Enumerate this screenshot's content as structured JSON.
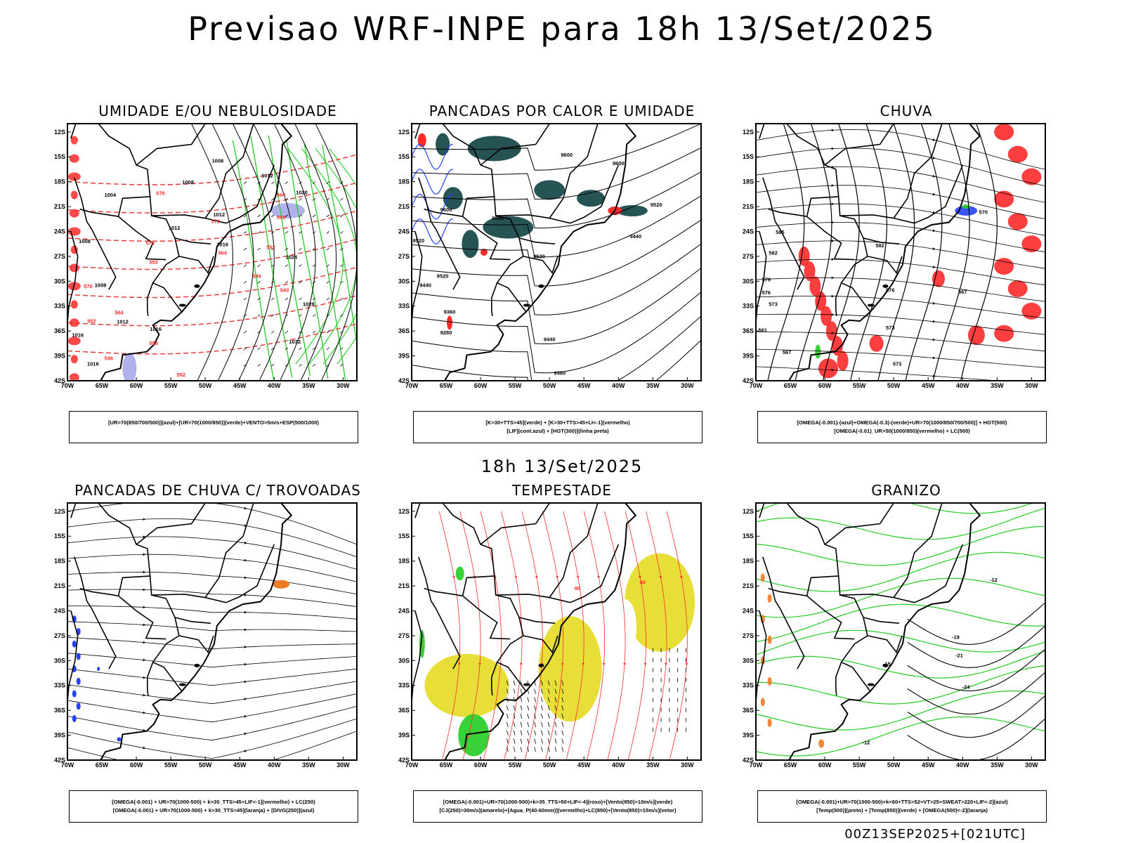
{
  "title": "Previsao WRF-INPE  para 18h 13/Set/2025",
  "subtitle": "18h 13/Set/2025",
  "footer": "00Z13SEP2025+[021UTC]",
  "colors": {
    "coast": "#000000",
    "isoline": "#000000",
    "red": "#ff2a2a",
    "red_dashed": "#e83030",
    "green": "#22cc22",
    "blue": "#2244ff",
    "lavender": "#a9a9ec",
    "teal": "#1a4a4a",
    "yellow": "#e6dc2c",
    "orange": "#ee7a22"
  },
  "axes": {
    "lon_ticks": [
      "70W",
      "65W",
      "60W",
      "55W",
      "50W",
      "45W",
      "40W",
      "35W",
      "30W"
    ],
    "lat_ticks": [
      "12S",
      "15S",
      "18S",
      "21S",
      "24S",
      "27S",
      "30S",
      "33S",
      "36S",
      "39S",
      "42S"
    ]
  },
  "chart_data": [
    {
      "type": "map",
      "title": "UMIDADE E/OU NEBULOSIDADE",
      "legend": [
        "[UR>70(850/700/500)](azul)+[UR>70(1000/850)](verde)+VENTO>5m/s+ESP(500/1000)"
      ],
      "xlim": [
        "70W",
        "28W"
      ],
      "ylim": [
        "12S",
        "42S"
      ],
      "contour_labels": [
        {
          "text": "1008",
          "lon": -48.2,
          "lat": -15.7,
          "color": "black"
        },
        {
          "text": "1008",
          "lon": -52.5,
          "lat": -18.3,
          "color": "black"
        },
        {
          "text": "1004",
          "lon": -63.8,
          "lat": -19.8,
          "color": "black"
        },
        {
          "text": "1012",
          "lon": -48.0,
          "lat": -22.2,
          "color": "black"
        },
        {
          "text": "1012",
          "lon": -54.5,
          "lat": -23.8,
          "color": "black"
        },
        {
          "text": "1012",
          "lon": -41.0,
          "lat": -17.5,
          "color": "black"
        },
        {
          "text": "1020",
          "lon": -36.0,
          "lat": -19.5,
          "color": "black"
        },
        {
          "text": "1008",
          "lon": -67.5,
          "lat": -25.4,
          "color": "black"
        },
        {
          "text": "1016",
          "lon": -47.5,
          "lat": -25.8,
          "color": "black"
        },
        {
          "text": "1024",
          "lon": -37.5,
          "lat": -27.3,
          "color": "black"
        },
        {
          "text": "1008",
          "lon": -65.2,
          "lat": -30.7,
          "color": "black"
        },
        {
          "text": "1012",
          "lon": -62.0,
          "lat": -35.1,
          "color": "black"
        },
        {
          "text": "1016",
          "lon": -57.2,
          "lat": -36.0,
          "color": "black"
        },
        {
          "text": "1028",
          "lon": -35.0,
          "lat": -33.0,
          "color": "black"
        },
        {
          "text": "1016",
          "lon": -68.5,
          "lat": -36.7,
          "color": "black"
        },
        {
          "text": "1032",
          "lon": -37.0,
          "lat": -37.5,
          "color": "black"
        },
        {
          "text": "1016",
          "lon": -66.3,
          "lat": -40.2,
          "color": "black"
        },
        {
          "text": "576",
          "lon": -56.5,
          "lat": -19.6,
          "color": "red"
        },
        {
          "text": "570",
          "lon": -48.5,
          "lat": -23.0,
          "color": "red"
        },
        {
          "text": "576",
          "lon": -58.0,
          "lat": -25.6,
          "color": "red"
        },
        {
          "text": "564",
          "lon": -47.5,
          "lat": -26.8,
          "color": "red"
        },
        {
          "text": "552",
          "lon": -57.5,
          "lat": -27.9,
          "color": "red"
        },
        {
          "text": "564",
          "lon": -39.0,
          "lat": -19.8,
          "color": "red"
        },
        {
          "text": "558",
          "lon": -39.0,
          "lat": -22.5,
          "color": "red"
        },
        {
          "text": "552",
          "lon": -40.5,
          "lat": -26.1,
          "color": "red"
        },
        {
          "text": "546",
          "lon": -42.5,
          "lat": -29.6,
          "color": "red"
        },
        {
          "text": "540",
          "lon": -38.5,
          "lat": -31.3,
          "color": "red"
        },
        {
          "text": "564",
          "lon": -62.5,
          "lat": -34.0,
          "color": "red"
        },
        {
          "text": "570",
          "lon": -67.0,
          "lat": -30.8,
          "color": "red"
        },
        {
          "text": "552",
          "lon": -66.5,
          "lat": -35.0,
          "color": "red"
        },
        {
          "text": "558",
          "lon": -57.5,
          "lat": -37.7,
          "color": "red"
        },
        {
          "text": "546",
          "lon": -64.0,
          "lat": -39.5,
          "color": "red"
        },
        {
          "text": "552",
          "lon": -53.5,
          "lat": -41.5,
          "color": "red"
        }
      ]
    },
    {
      "type": "map",
      "title": "PANCADAS POR CALOR E UMIDADE",
      "legend": [
        "[K>30+TTS>45](verde) + [K>30+TTS>45+LI<-1](vermelho)",
        "[LIF](cont.azul) + [HGT(300)](linha preta)"
      ],
      "xlim": [
        "70W",
        "28W"
      ],
      "ylim": [
        "12S",
        "42S"
      ],
      "contour_labels": [
        {
          "text": "9600",
          "lon": -47.5,
          "lat": -15.0,
          "color": "black"
        },
        {
          "text": "9600",
          "lon": -40.0,
          "lat": -16.0,
          "color": "black"
        },
        {
          "text": "9520",
          "lon": -34.5,
          "lat": -21.0,
          "color": "black"
        },
        {
          "text": "9600",
          "lon": -65.0,
          "lat": -21.6,
          "color": "black"
        },
        {
          "text": "9600",
          "lon": -57.5,
          "lat": -22.6,
          "color": "black"
        },
        {
          "text": "9440",
          "lon": -37.5,
          "lat": -24.8,
          "color": "black"
        },
        {
          "text": "9520",
          "lon": -69.0,
          "lat": -25.3,
          "color": "black"
        },
        {
          "text": "9520",
          "lon": -51.5,
          "lat": -27.2,
          "color": "black"
        },
        {
          "text": "9520",
          "lon": -65.5,
          "lat": -29.6,
          "color": "black"
        },
        {
          "text": "9440",
          "lon": -68.0,
          "lat": -30.7,
          "color": "black"
        },
        {
          "text": "9360",
          "lon": -64.5,
          "lat": -33.9,
          "color": "black"
        },
        {
          "text": "9280",
          "lon": -65.0,
          "lat": -36.4,
          "color": "black"
        },
        {
          "text": "9440",
          "lon": -50.0,
          "lat": -37.2,
          "color": "black"
        },
        {
          "text": "9360",
          "lon": -48.5,
          "lat": -41.3,
          "color": "black"
        }
      ]
    },
    {
      "type": "map",
      "title": "CHUVA",
      "legend": [
        "[OMEGA(-0.001)-(azul)+OMEGA(-0.3)-(verde)+UR>70(1000/850/700/500)] + HGT(500)",
        "[OMEGA(-0.01)_UR>50(1000/850)(vermelho) + LC(500)"
      ],
      "xlim": [
        "70W",
        "28W"
      ],
      "ylim": [
        "12S",
        "42S"
      ],
      "contour_labels": [
        {
          "text": "585",
          "lon": -66.5,
          "lat": -24.3,
          "color": "black"
        },
        {
          "text": "582",
          "lon": -52.0,
          "lat": -25.9,
          "color": "black"
        },
        {
          "text": "582",
          "lon": -67.5,
          "lat": -26.8,
          "color": "black"
        },
        {
          "text": "579",
          "lon": -68.5,
          "lat": -30.0,
          "color": "black"
        },
        {
          "text": "576",
          "lon": -50.5,
          "lat": -31.3,
          "color": "black"
        },
        {
          "text": "576",
          "lon": -68.5,
          "lat": -31.6,
          "color": "black"
        },
        {
          "text": "573",
          "lon": -67.5,
          "lat": -33.0,
          "color": "black"
        },
        {
          "text": "567",
          "lon": -40.0,
          "lat": -31.5,
          "color": "black"
        },
        {
          "text": "573",
          "lon": -50.5,
          "lat": -35.8,
          "color": "black"
        },
        {
          "text": "561",
          "lon": -69.0,
          "lat": -36.1,
          "color": "black"
        },
        {
          "text": "567",
          "lon": -65.5,
          "lat": -38.8,
          "color": "black"
        },
        {
          "text": "573",
          "lon": -49.5,
          "lat": -40.2,
          "color": "black"
        },
        {
          "text": "570",
          "lon": -37.0,
          "lat": -21.9,
          "color": "black"
        }
      ]
    },
    {
      "type": "map",
      "title": "PANCADAS DE CHUVA C/ TROVOADAS",
      "legend": [
        "[OMEGA(-0.001) + UR>70(1000-500) + k>30_TTS>45+LIF<-1](vermelho) + LC(250)",
        "[OMEGA(-0.001) + UR>70(1000-500) + k>30_TTS>45](laranja) + [DIVG(250)](azul)"
      ],
      "xlim": [
        "70W",
        "28W"
      ],
      "ylim": [
        "12S",
        "42S"
      ],
      "contour_labels": []
    },
    {
      "type": "map",
      "title": "TEMPESTADE",
      "legend": [
        "[OMEGA(-0.001)+UR>70(1000-500)+k>35_TTS>50+LIF<-4](roxo)+[Vento(850)>10m/s](verde)",
        "[CJ(250)>30m/s](amarelo)+[Agua_P(40-60mm)](vermelho)+LC(850)+[Vento(850)>15m/s](vetor)"
      ],
      "xlim": [
        "70W",
        "28W"
      ],
      "ylim": [
        "12S",
        "42S"
      ],
      "contour_labels": [
        {
          "text": "40",
          "lon": -36.5,
          "lat": -20.8,
          "color": "red"
        },
        {
          "text": "40",
          "lon": -46.0,
          "lat": -21.5,
          "color": "red"
        }
      ]
    },
    {
      "type": "map",
      "title": "GRANIZO",
      "legend": [
        "[OMEGA(-0.001)+UR>70(1000-500)+k<60+TTS>52+VT>25+SWEAT>220+LIF<-2](azul)",
        "[Temp(500)](preto) + [Temp(850)](verde) + [OMEGA(500)<-2](laranja)"
      ],
      "xlim": [
        "70W",
        "28W"
      ],
      "ylim": [
        "12S",
        "42S"
      ],
      "contour_labels": [
        {
          "text": "-12",
          "lon": -35.5,
          "lat": -20.5,
          "color": "black"
        },
        {
          "text": "-18",
          "lon": -41.0,
          "lat": -27.4,
          "color": "black"
        },
        {
          "text": "-21",
          "lon": -40.5,
          "lat": -29.6,
          "color": "black"
        },
        {
          "text": "-24",
          "lon": -39.5,
          "lat": -33.4,
          "color": "black"
        },
        {
          "text": "-15",
          "lon": -51.0,
          "lat": -30.6,
          "color": "black"
        },
        {
          "text": "-12",
          "lon": -54.0,
          "lat": -40.1,
          "color": "black"
        }
      ]
    }
  ]
}
